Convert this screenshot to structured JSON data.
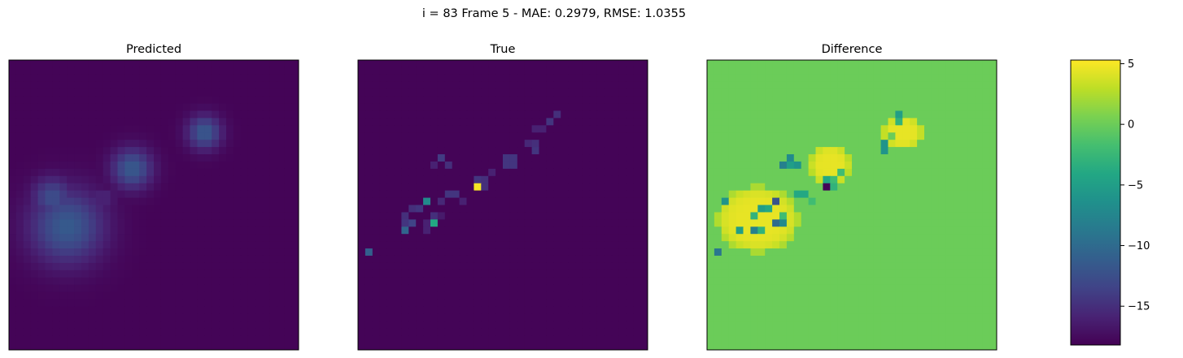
{
  "chart_data": {
    "type": "heatmap",
    "title": "i = 83 Frame 5 - MAE: 0.2979, RMSE: 1.0355",
    "grid": false,
    "colormap": "viridis",
    "panels": [
      {
        "title": "Predicted",
        "grid_size": 40,
        "background": -18,
        "blobs": [
          {
            "cx": 7.5,
            "cy": 22.5,
            "rx": 5.5,
            "ry": 5.5,
            "peak": -11.5
          },
          {
            "cx": 5.5,
            "cy": 18.5,
            "rx": 3.0,
            "ry": 3.0,
            "peak": -12.5
          },
          {
            "cx": 16.5,
            "cy": 14.5,
            "rx": 3.0,
            "ry": 3.0,
            "peak": -11.5
          },
          {
            "cx": 26.5,
            "cy": 9.5,
            "rx": 2.5,
            "ry": 2.5,
            "peak": -11.5
          },
          {
            "cx": 12.5,
            "cy": 18.5,
            "rx": 2.0,
            "ry": 1.5,
            "peak": -15.5
          }
        ]
      },
      {
        "title": "True",
        "grid_size": 40,
        "background": -18,
        "cells": [
          [
            27,
            7,
            -15
          ],
          [
            26,
            8,
            -14.5
          ],
          [
            25,
            9,
            -16
          ],
          [
            24,
            9,
            -16
          ],
          [
            23,
            11,
            -15.5
          ],
          [
            24,
            11,
            -15
          ],
          [
            24,
            12,
            -14.5
          ],
          [
            20,
            13,
            -14.5
          ],
          [
            21,
            13,
            -14.5
          ],
          [
            20,
            14,
            -14.5
          ],
          [
            21,
            14,
            -14.5
          ],
          [
            11,
            13,
            -14
          ],
          [
            12,
            14,
            -15
          ],
          [
            10,
            14,
            -16
          ],
          [
            18,
            15,
            -16
          ],
          [
            16,
            16,
            -14.5
          ],
          [
            17,
            16,
            -15
          ],
          [
            16,
            17,
            5
          ],
          [
            17,
            17,
            -15
          ],
          [
            12,
            18,
            -14.5
          ],
          [
            13,
            18,
            -14.5
          ],
          [
            11,
            19,
            -15.5
          ],
          [
            14,
            19,
            -16
          ],
          [
            9,
            19,
            -7
          ],
          [
            7,
            20,
            -15
          ],
          [
            8,
            20,
            -14.5
          ],
          [
            10,
            21,
            -15
          ],
          [
            11,
            21,
            -16.5
          ],
          [
            6,
            21,
            -15
          ],
          [
            9,
            22,
            -16
          ],
          [
            10,
            22,
            -4
          ],
          [
            6,
            22,
            -14.5
          ],
          [
            7,
            22,
            -13.5
          ],
          [
            6,
            23,
            -10.5
          ],
          [
            9,
            23,
            -16
          ],
          [
            1,
            26,
            -11
          ]
        ]
      },
      {
        "title": "Difference",
        "grid_size": 40,
        "background": 0,
        "rings": [
          {
            "cx": 6.5,
            "cy": 21.5,
            "rx": 5.0,
            "ry": 4.0,
            "value": 4.5
          },
          {
            "cx": 4.5,
            "cy": 23.0,
            "rx": 2.5,
            "ry": 2.0,
            "value": 3.5
          },
          {
            "cx": 16.5,
            "cy": 14.0,
            "rx": 2.5,
            "ry": 2.5,
            "value": 4.5
          },
          {
            "cx": 26.5,
            "cy": 9.5,
            "rx": 2.5,
            "ry": 2.0,
            "value": 4.5
          }
        ],
        "cells": [
          [
            26,
            7,
            -5
          ],
          [
            26,
            8,
            -3
          ],
          [
            25,
            10,
            0
          ],
          [
            24,
            11,
            -6
          ],
          [
            24,
            12,
            -6
          ],
          [
            11,
            13,
            -7
          ],
          [
            12,
            14,
            -6
          ],
          [
            10,
            14,
            -8
          ],
          [
            11,
            14,
            -5
          ],
          [
            18,
            15,
            -2
          ],
          [
            16,
            16,
            -4
          ],
          [
            17,
            16,
            -2
          ],
          [
            16,
            17,
            -18
          ],
          [
            17,
            17,
            -3
          ],
          [
            12,
            18,
            -4
          ],
          [
            13,
            18,
            -4
          ],
          [
            9,
            19,
            -12
          ],
          [
            14,
            19,
            -2
          ],
          [
            2,
            19,
            -6
          ],
          [
            7,
            20,
            -5
          ],
          [
            8,
            20,
            -4
          ],
          [
            10,
            21,
            -2
          ],
          [
            6,
            21,
            -3
          ],
          [
            9,
            22,
            -10
          ],
          [
            10,
            22,
            -7
          ],
          [
            6,
            23,
            -8
          ],
          [
            4,
            23,
            -5
          ],
          [
            7,
            23,
            -3
          ],
          [
            1,
            26,
            -9
          ]
        ]
      }
    ],
    "colorbar": {
      "range": [
        -18.2,
        5.3
      ],
      "ticks": [
        5,
        0,
        -5,
        -10,
        -15
      ],
      "tick_labels": [
        "5",
        "0",
        "−5",
        "−10",
        "−15"
      ]
    }
  }
}
